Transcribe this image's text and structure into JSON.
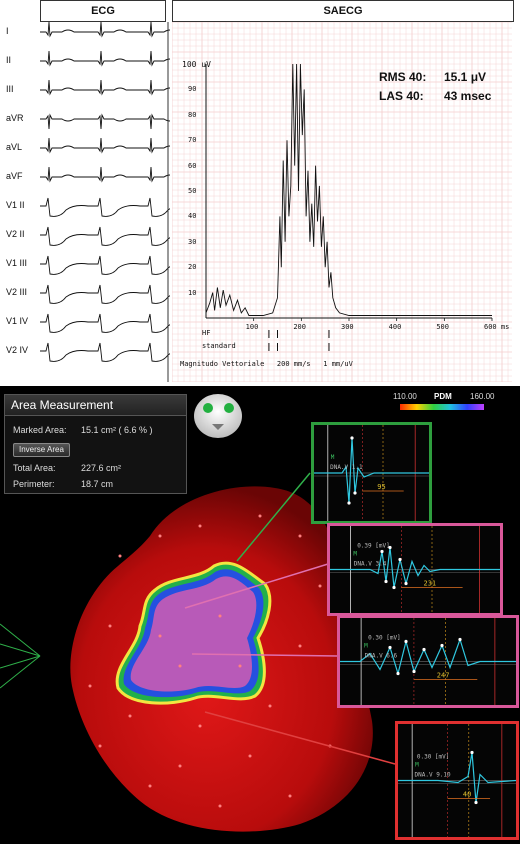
{
  "ecg_header": "ECG",
  "saecg_header": "SAECG",
  "leads": [
    "I",
    "II",
    "III",
    "aVR",
    "aVL",
    "aVF",
    "V1 II",
    "V2 II",
    "V1 III",
    "V2 III",
    "V1 IV",
    "V2 IV"
  ],
  "saecg": {
    "y_top_label": "100 uV",
    "y_ticks": [
      "90",
      "80",
      "70",
      "60",
      "50",
      "40",
      "30",
      "20",
      "10"
    ],
    "x_ticks": [
      "100",
      "200",
      "300",
      "400",
      "500",
      "600 ms"
    ],
    "hf_label": "HF",
    "standard_label": "standard",
    "footer": "Magnitudo Vettoriale   200 mm/s   1 mm/uV",
    "rms_label": "RMS 40:",
    "rms_value": "15.1 μV",
    "las_label": "LAS 40:",
    "las_value": "43 msec"
  },
  "area_panel": {
    "title": "Area Measurement",
    "marked_label": "Marked Area:",
    "marked_value": "15.1 cm² ( 6.6 % )",
    "inverse_button": "Inverse Area",
    "total_label": "Total Area:",
    "total_value": "227.6 cm²",
    "perimeter_label": "Perimeter:",
    "perimeter_value": "18.7 cm"
  },
  "color_scale": {
    "min": "110.00",
    "label": "PDM",
    "max": "160.00"
  },
  "insets": [
    {
      "channel": "DNA.V 1.1",
      "scale": "",
      "measure": "95",
      "border": "#2e9e3e"
    },
    {
      "channel": "DNA.V 3.4",
      "scale": "0.39  [mV]",
      "measure": "231",
      "border": "#d9589a"
    },
    {
      "channel": "DNA.V 6.6",
      "scale": "0.30  [mV]",
      "measure": "247",
      "border": "#d9589a"
    },
    {
      "channel": "DNA.V 9.10",
      "scale": "0.30  [mV]",
      "measure": "40",
      "border": "#e03030"
    }
  ],
  "inset_marker": "M",
  "colors": {
    "green_line": "#2fb04a",
    "pink_line": "#e070b0",
    "red_line": "#e04040",
    "heart": "#c81010"
  }
}
